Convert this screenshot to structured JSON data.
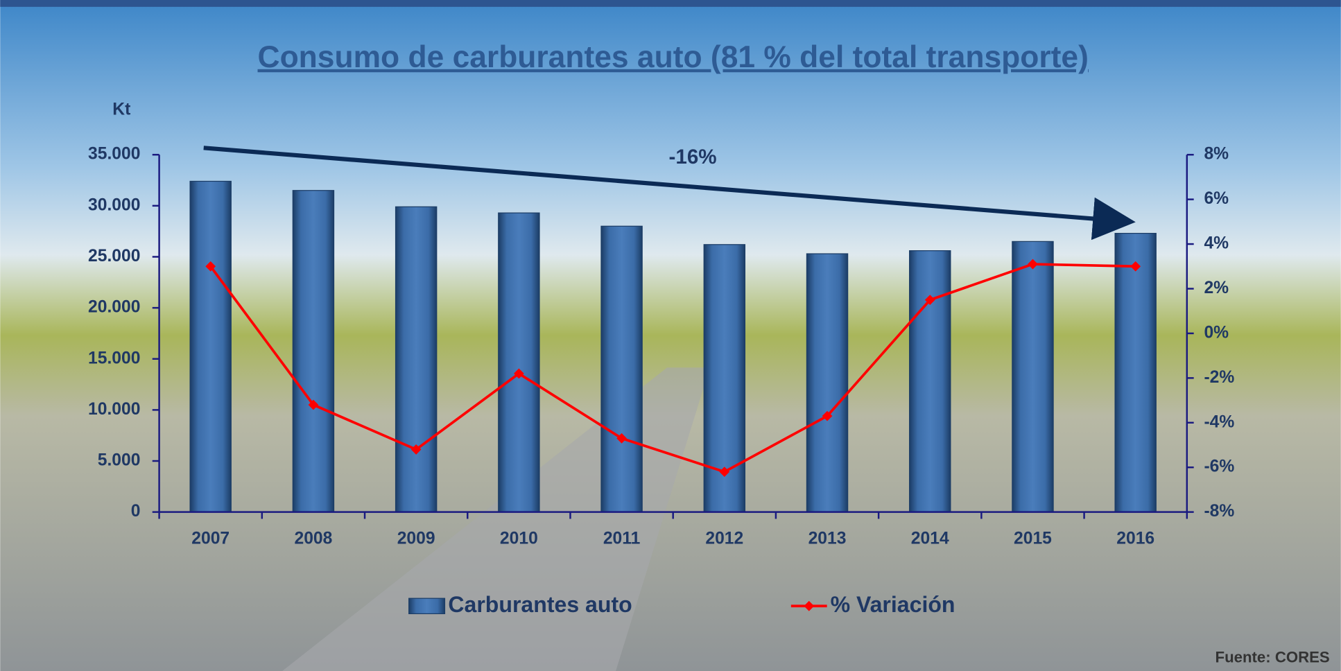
{
  "chart_data": {
    "type": "bar",
    "title": "Consumo de carburantes auto (81 % del total transporte)",
    "y_unit": "Kt",
    "annotation": "-16%",
    "source": "Fuente: CORES",
    "categories": [
      "2007",
      "2008",
      "2009",
      "2010",
      "2011",
      "2012",
      "2013",
      "2014",
      "2015",
      "2016"
    ],
    "series": [
      {
        "name": "Carburantes auto",
        "type": "bar",
        "color": "#2e5b94",
        "values": [
          32400,
          31500,
          29900,
          29300,
          28000,
          26200,
          25300,
          25600,
          26500,
          27300
        ]
      },
      {
        "name": "% Variación",
        "type": "line",
        "axis": "y2",
        "color": "#ff0000",
        "values": [
          3.0,
          -3.2,
          -5.2,
          -1.8,
          -4.7,
          -6.2,
          -3.7,
          1.5,
          3.1,
          3.0
        ]
      }
    ],
    "ylim": [
      0,
      35000
    ],
    "yticks": [
      0,
      {
        "value": 5000,
        "label": "5.000"
      },
      {
        "value": 10000,
        "label": "10.000"
      },
      {
        "value": 15000,
        "label": "15.000"
      },
      {
        "value": 20000,
        "label": "20.000"
      },
      {
        "value": 25000,
        "label": "25.000"
      },
      {
        "value": 30000,
        "label": "30.000"
      },
      {
        "value": 35000,
        "label": "35.000"
      }
    ],
    "y2lim": [
      -8,
      8
    ],
    "y2ticks": [
      {
        "value": -8,
        "label": "-8%"
      },
      {
        "value": -6,
        "label": "-6%"
      },
      {
        "value": -4,
        "label": "-4%"
      },
      {
        "value": -2,
        "label": "-2%"
      },
      {
        "value": 0,
        "label": "0%"
      },
      {
        "value": 2,
        "label": "2%"
      },
      {
        "value": 4,
        "label": "4%"
      },
      {
        "value": 6,
        "label": "6%"
      },
      {
        "value": 8,
        "label": "8%"
      }
    ]
  }
}
